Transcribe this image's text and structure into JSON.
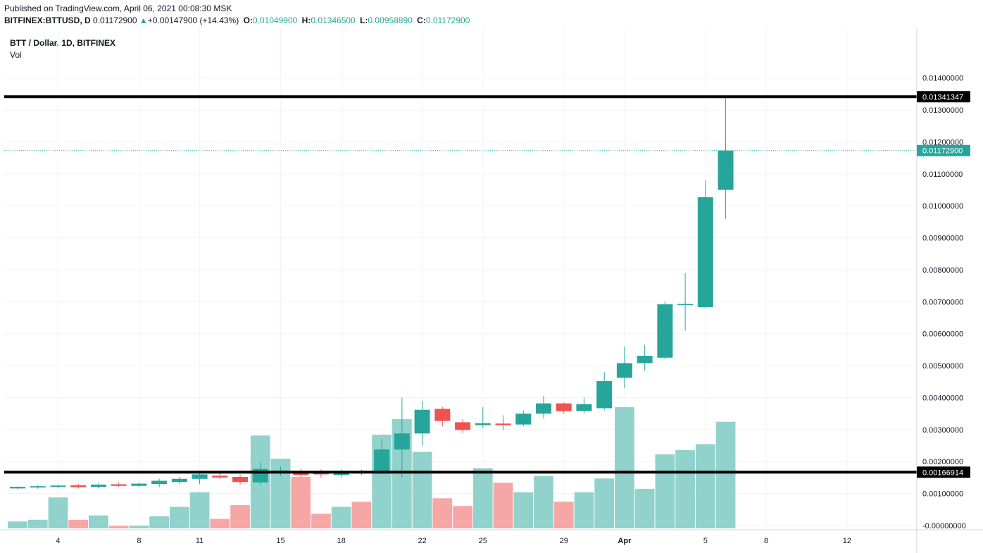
{
  "header": {
    "published": "Published on TradingView.com, April 06, 2021 00:08:30 MSK",
    "symbol": "BITFINEX:BTTUSD, D",
    "last": "0.01172900",
    "change_arrow": "▲",
    "change": "+0.00147900 (+14.43%)",
    "o_label": "O:",
    "o": "0.01049900",
    "h_label": "H:",
    "h": "0.01346500",
    "l_label": "L:",
    "l": "0.00958890",
    "c_label": "C:",
    "c": "0.01172900"
  },
  "legend": {
    "title": "BTT / Dollar, 1D, BITFINEX",
    "volume": "Vol"
  },
  "colors": {
    "up": "#26a69a",
    "down": "#ef5350",
    "vol_up": "#92d2cc",
    "vol_down": "#f6a7a5",
    "grid": "#f0f3fa",
    "hline": "#000000"
  },
  "chart_data": {
    "type": "candlestick",
    "ylim": [
      0,
      0.0145
    ],
    "y_ticks": [
      "0.01400000",
      "0.01300000",
      "0.01200000",
      "0.01100000",
      "0.01000000",
      "0.00900000",
      "0.00800000",
      "0.00700000",
      "0.00600000",
      "0.00500000",
      "0.00400000",
      "0.00300000",
      "0.00200000",
      "0.00100000",
      "-0.00000000"
    ],
    "y_tick_values": [
      0.014,
      0.013,
      0.012,
      0.011,
      0.01,
      0.009,
      0.008,
      0.007,
      0.006,
      0.005,
      0.004,
      0.003,
      0.002,
      0.001,
      0
    ],
    "x_ticks": [
      {
        "label": "4",
        "index": 2
      },
      {
        "label": "8",
        "index": 6
      },
      {
        "label": "11",
        "index": 9
      },
      {
        "label": "15",
        "index": 13
      },
      {
        "label": "18",
        "index": 16
      },
      {
        "label": "22",
        "index": 20
      },
      {
        "label": "25",
        "index": 23
      },
      {
        "label": "29",
        "index": 27
      },
      {
        "label": "Apr",
        "index": 30
      },
      {
        "label": "5",
        "index": 34
      },
      {
        "label": "8",
        "index": 37
      },
      {
        "label": "12",
        "index": 41
      }
    ],
    "horizontal_lines": [
      {
        "value": 0.01341347,
        "label": "0.01341347"
      },
      {
        "value": 0.00166914,
        "label": "0.00166914"
      }
    ],
    "last_price": {
      "value": 0.011729,
      "label": "0.01172900"
    },
    "candles": [
      {
        "o": 0.00116,
        "h": 0.00123,
        "l": 0.00113,
        "c": 0.00121,
        "v": 0.08
      },
      {
        "o": 0.00119,
        "h": 0.00127,
        "l": 0.00115,
        "c": 0.00123,
        "v": 0.1
      },
      {
        "o": 0.00121,
        "h": 0.00128,
        "l": 0.00117,
        "c": 0.00125,
        "v": 0.36
      },
      {
        "o": 0.00126,
        "h": 0.0013,
        "l": 0.00116,
        "c": 0.0012,
        "v": 0.1
      },
      {
        "o": 0.00121,
        "h": 0.00133,
        "l": 0.00117,
        "c": 0.00128,
        "v": 0.15
      },
      {
        "o": 0.00129,
        "h": 0.00135,
        "l": 0.0012,
        "c": 0.00124,
        "v": 0.03
      },
      {
        "o": 0.00124,
        "h": 0.00135,
        "l": 0.0012,
        "c": 0.00131,
        "v": 0.03
      },
      {
        "o": 0.0013,
        "h": 0.00146,
        "l": 0.0012,
        "c": 0.0014,
        "v": 0.14
      },
      {
        "o": 0.00136,
        "h": 0.00152,
        "l": 0.0013,
        "c": 0.00146,
        "v": 0.25
      },
      {
        "o": 0.00146,
        "h": 0.00168,
        "l": 0.0013,
        "c": 0.0016,
        "v": 0.42
      },
      {
        "o": 0.00156,
        "h": 0.00165,
        "l": 0.00145,
        "c": 0.0015,
        "v": 0.11
      },
      {
        "o": 0.00152,
        "h": 0.0016,
        "l": 0.00128,
        "c": 0.00136,
        "v": 0.27
      },
      {
        "o": 0.00135,
        "h": 0.002,
        "l": 0.00125,
        "c": 0.00177,
        "v": 1.08
      },
      {
        "o": 0.00165,
        "h": 0.00185,
        "l": 0.00155,
        "c": 0.00172,
        "v": 0.81
      },
      {
        "o": 0.0017,
        "h": 0.00178,
        "l": 0.00152,
        "c": 0.00158,
        "v": 0.6
      },
      {
        "o": 0.00166,
        "h": 0.00175,
        "l": 0.0015,
        "c": 0.0016,
        "v": 0.17
      },
      {
        "o": 0.00158,
        "h": 0.00175,
        "l": 0.0015,
        "c": 0.00168,
        "v": 0.25
      },
      {
        "o": 0.00167,
        "h": 0.00175,
        "l": 0.00158,
        "c": 0.00163,
        "v": 0.31
      },
      {
        "o": 0.00163,
        "h": 0.0027,
        "l": 0.0016,
        "c": 0.00238,
        "v": 1.09
      },
      {
        "o": 0.00238,
        "h": 0.004,
        "l": 0.0015,
        "c": 0.00288,
        "v": 1.27
      },
      {
        "o": 0.00288,
        "h": 0.0039,
        "l": 0.0025,
        "c": 0.00362,
        "v": 0.89
      },
      {
        "o": 0.00365,
        "h": 0.0037,
        "l": 0.0031,
        "c": 0.00327,
        "v": 0.35
      },
      {
        "o": 0.00323,
        "h": 0.00332,
        "l": 0.0029,
        "c": 0.00299,
        "v": 0.26
      },
      {
        "o": 0.00314,
        "h": 0.0037,
        "l": 0.00305,
        "c": 0.0032,
        "v": 0.7
      },
      {
        "o": 0.00319,
        "h": 0.00345,
        "l": 0.00298,
        "c": 0.00314,
        "v": 0.53
      },
      {
        "o": 0.00316,
        "h": 0.0036,
        "l": 0.0031,
        "c": 0.0035,
        "v": 0.42
      },
      {
        "o": 0.0035,
        "h": 0.00405,
        "l": 0.00335,
        "c": 0.00382,
        "v": 0.61
      },
      {
        "o": 0.00382,
        "h": 0.00385,
        "l": 0.0035,
        "c": 0.00358,
        "v": 0.31
      },
      {
        "o": 0.00358,
        "h": 0.004,
        "l": 0.0035,
        "c": 0.0038,
        "v": 0.42
      },
      {
        "o": 0.00367,
        "h": 0.0048,
        "l": 0.0036,
        "c": 0.00452,
        "v": 0.58
      },
      {
        "o": 0.00462,
        "h": 0.0056,
        "l": 0.0043,
        "c": 0.00508,
        "v": 1.41
      },
      {
        "o": 0.00508,
        "h": 0.00565,
        "l": 0.00485,
        "c": 0.00531,
        "v": 0.46
      },
      {
        "o": 0.00525,
        "h": 0.007,
        "l": 0.0052,
        "c": 0.00692,
        "v": 0.86
      },
      {
        "o": 0.0069,
        "h": 0.0079,
        "l": 0.0061,
        "c": 0.00693,
        "v": 0.91
      },
      {
        "o": 0.00683,
        "h": 0.0108,
        "l": 0.0068,
        "c": 0.01027,
        "v": 0.98
      },
      {
        "o": 0.0105,
        "h": 0.01346,
        "l": 0.00959,
        "c": 0.01173,
        "v": 1.24
      }
    ]
  }
}
